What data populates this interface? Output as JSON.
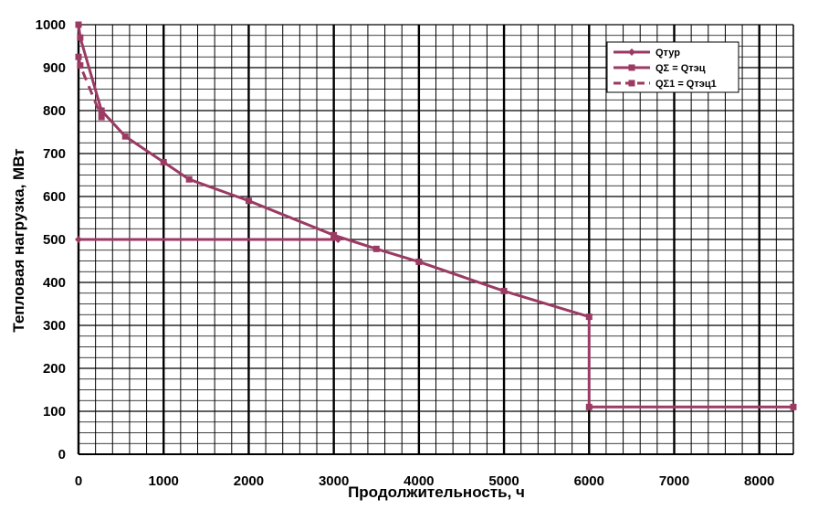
{
  "chart_data": {
    "type": "line",
    "title": "",
    "xlabel": "Продолжительность, ч",
    "ylabel": "Тепловая нагрузка, МВт",
    "xlim": [
      0,
      8400
    ],
    "ylim": [
      0,
      1000
    ],
    "x_major_ticks": [
      0,
      1000,
      2000,
      3000,
      4000,
      5000,
      6000,
      7000,
      8000
    ],
    "y_major_ticks": [
      0,
      100,
      200,
      300,
      400,
      500,
      600,
      700,
      800,
      900,
      1000
    ],
    "x_minor_step": 200,
    "y_minor_step": 25,
    "grid": true,
    "legend_position": "top-right",
    "series": [
      {
        "name": "Qтур",
        "color": "#9b3a63",
        "style": "solid",
        "marker": "diamond",
        "points": [
          [
            0,
            500
          ],
          [
            3050,
            500
          ]
        ]
      },
      {
        "name": "QΣ = Qтэц",
        "color": "#9b3a63",
        "style": "solid",
        "marker": "square",
        "points": [
          [
            0,
            1000
          ],
          [
            20,
            970
          ],
          [
            270,
            800
          ],
          [
            550,
            740
          ],
          [
            1000,
            680
          ],
          [
            1300,
            640
          ],
          [
            2000,
            590
          ],
          [
            3000,
            510
          ],
          [
            3500,
            478
          ],
          [
            4000,
            448
          ],
          [
            5000,
            380
          ],
          [
            6000,
            320
          ],
          [
            6000,
            110
          ],
          [
            8400,
            110
          ]
        ]
      },
      {
        "name": "QΣ1 = Qтэц1",
        "color": "#9b3a63",
        "style": "dashed",
        "marker": "square",
        "points": [
          [
            0,
            925
          ],
          [
            20,
            905
          ],
          [
            270,
            785
          ]
        ]
      }
    ]
  }
}
